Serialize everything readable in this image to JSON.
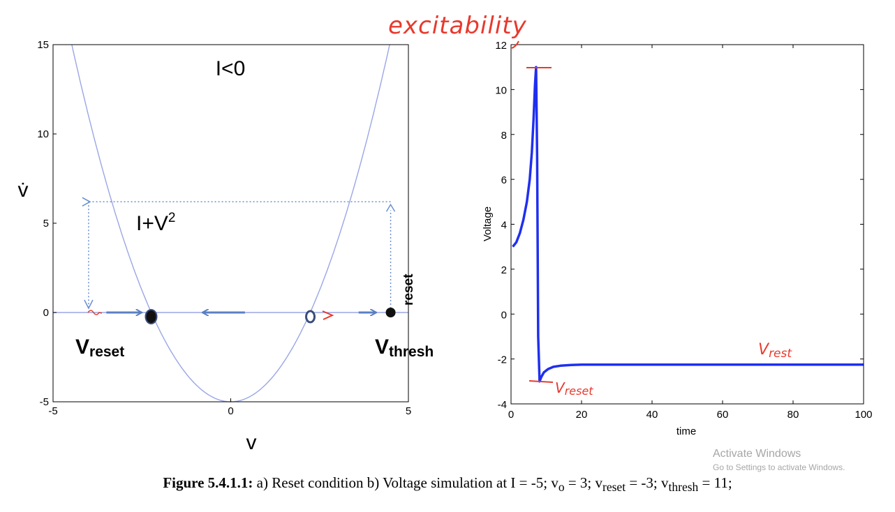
{
  "chart_data": [
    {
      "type": "line",
      "title": "I<0",
      "xlabel": "v",
      "ylabel": "v̇",
      "xlim": [
        -5,
        5
      ],
      "ylim": [
        -5,
        15
      ],
      "xticks": [
        "-5",
        "0",
        "5"
      ],
      "yticks": [
        "-5",
        "0",
        "5",
        "10",
        "15"
      ],
      "grid": false,
      "series": [
        {
          "name": "I+V²",
          "function": "-5 + v^2",
          "color": "#9aa6e6"
        }
      ],
      "points": [
        {
          "v": -2.24,
          "style": "filled-stable"
        },
        {
          "v": 2.24,
          "style": "open-unstable"
        },
        {
          "v": 4.5,
          "style": "filled-threshold"
        }
      ],
      "flow_arrows": [
        {
          "from": -3.5,
          "to": -2.5
        },
        {
          "from": 0.4,
          "to": -0.8
        },
        {
          "from": 3.6,
          "to": 4.1
        }
      ],
      "reset_path": {
        "from_v": 4.5,
        "to_v": -4.0,
        "height": 6.2
      },
      "annotations": {
        "curve_label": "I+V",
        "curve_label_sup": "2",
        "reset_label": "reset",
        "v_reset_main": "V",
        "v_reset_sub": "reset",
        "v_thresh_main": "V",
        "v_thresh_sub": "thresh"
      }
    },
    {
      "type": "line",
      "title": "",
      "xlabel": "time",
      "ylabel": "Voltage",
      "xlim": [
        0,
        100
      ],
      "ylim": [
        -4,
        12
      ],
      "xticks": [
        "0",
        "20",
        "40",
        "60",
        "80",
        "100"
      ],
      "yticks": [
        "-4",
        "-2",
        "0",
        "2",
        "4",
        "6",
        "8",
        "10",
        "12"
      ],
      "grid": false,
      "series": [
        {
          "color": "#1f2ff0",
          "x": [
            0.5,
            1.5,
            2.5,
            3.5,
            4.5,
            5.3,
            5.9,
            6.4,
            6.8,
            7.1,
            7.4,
            7.7,
            8.1,
            8.6,
            9.3,
            10.5,
            12,
            14,
            17,
            20,
            30,
            50,
            75,
            100
          ],
          "y": [
            3.0,
            3.2,
            3.6,
            4.2,
            5.0,
            6.0,
            7.2,
            8.7,
            10.2,
            11.0,
            7.0,
            -1.0,
            -3.0,
            -2.8,
            -2.6,
            -2.45,
            -2.35,
            -2.3,
            -2.27,
            -2.25,
            -2.25,
            -2.25,
            -2.25,
            -2.25
          ]
        }
      ],
      "annotations": {
        "handwritten_top": "excitability",
        "handwritten_reset": "V",
        "handwritten_reset_sub": "reset",
        "handwritten_rest": "V",
        "handwritten_rest_sub": "rest"
      }
    }
  ],
  "caption": {
    "label": "Figure 5.4.1.1:",
    "text": " a) Reset condition b) Voltage simulation at I = -5; v",
    "sub_o": "o",
    "t2": " = 3; v",
    "sub_reset": "reset",
    "t3": " = -3; v",
    "sub_thresh": "thresh",
    "t4": " = 11;"
  },
  "watermark": {
    "line1": "Activate Windows",
    "line2": "Go to Settings to activate Windows."
  }
}
